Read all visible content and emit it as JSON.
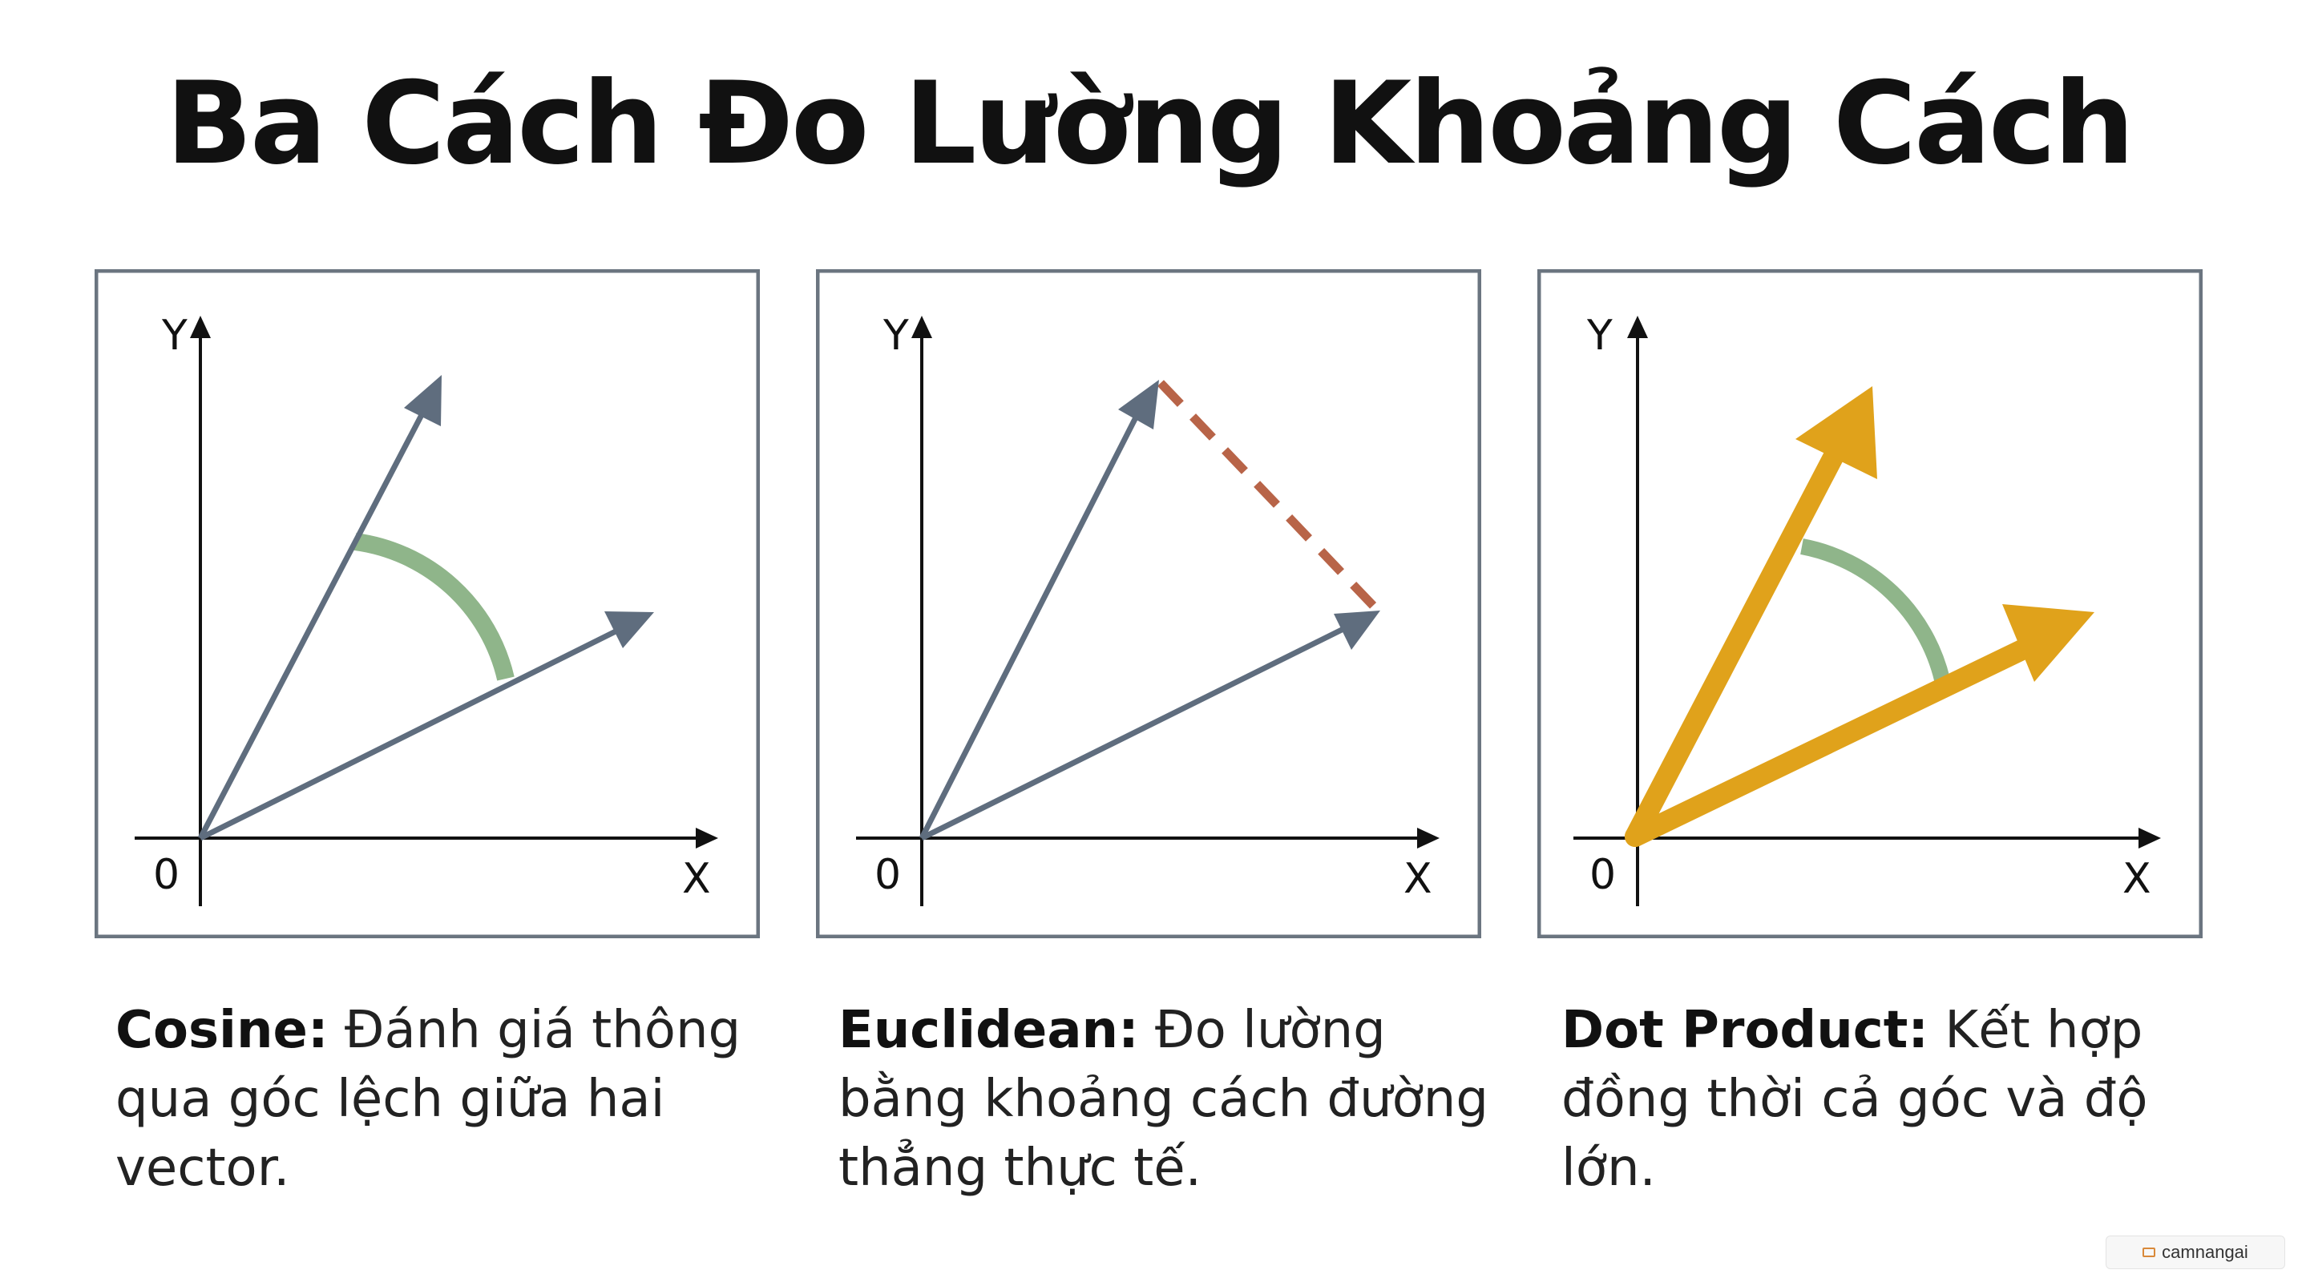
{
  "title": "Ba Cách Đo Lường Khoảng Cách",
  "panels": [
    {
      "axis_y": "Y",
      "axis_x": "X",
      "origin": "0",
      "caption_term": "Cosine:",
      "caption_text": " Đánh giá thông qua góc lệch giữa hai vector."
    },
    {
      "axis_y": "Y",
      "axis_x": "X",
      "origin": "0",
      "caption_term": "Euclidean:",
      "caption_text": " Đo lường bằng khoảng cách đường thẳng thực tế."
    },
    {
      "axis_y": "Y",
      "axis_x": "X",
      "origin": "0",
      "caption_term": "Dot Product:",
      "caption_text": " Kết hợp đồng thời cả góc và độ lớn."
    }
  ],
  "colors": {
    "vector": "#5f6d7e",
    "angle_arc": "#8fb58a",
    "distance_dash": "#b86448",
    "dot_vector": "#e0a21b",
    "frame": "#6b7580"
  },
  "watermark": {
    "icon": "book-icon",
    "text": "camnangai"
  }
}
